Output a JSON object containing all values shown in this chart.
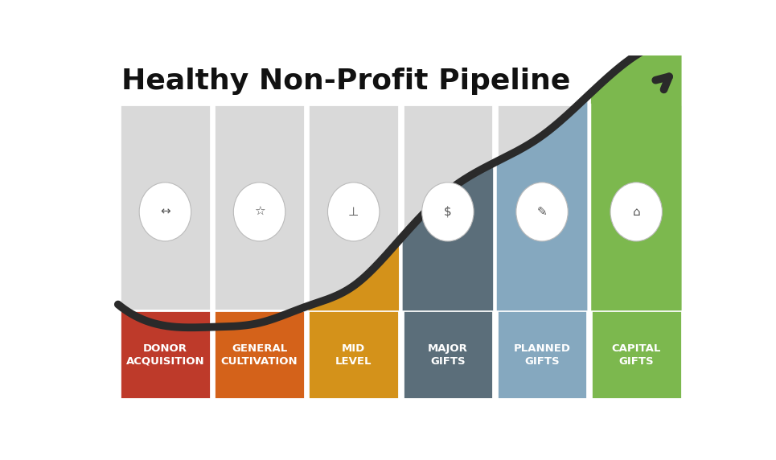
{
  "title": "Healthy Non-Profit Pipeline",
  "title_fontsize": 26,
  "title_fontweight": "bold",
  "background_color": "#ffffff",
  "segments": [
    {
      "label": "DONOR\nACQUISITION",
      "bar_color": "#be3a2a",
      "upper_color": "#d9d9d9"
    },
    {
      "label": "GENERAL\nCULTIVATION",
      "bar_color": "#d4621a",
      "upper_color": "#d9d9d9"
    },
    {
      "label": "MID\nLEVEL",
      "bar_color": "#d4921a",
      "upper_color": "#d9d9d9"
    },
    {
      "label": "MAJOR\nGIFTS",
      "bar_color": "#5b6e7a",
      "upper_color": "#d9d9d9"
    },
    {
      "label": "PLANNED\nGIFTS",
      "bar_color": "#85a8bf",
      "upper_color": "#d9d9d9"
    },
    {
      "label": "CAPITAL\nGIFTS",
      "bar_color": "#7cb84e",
      "upper_color": "#7cb84e"
    }
  ],
  "curve_color": "#2a2a2a",
  "curve_linewidth": 7,
  "n_segments": 6,
  "label_fontsize": 9.5,
  "label_color": "#ffffff",
  "label_fontweight": "bold"
}
